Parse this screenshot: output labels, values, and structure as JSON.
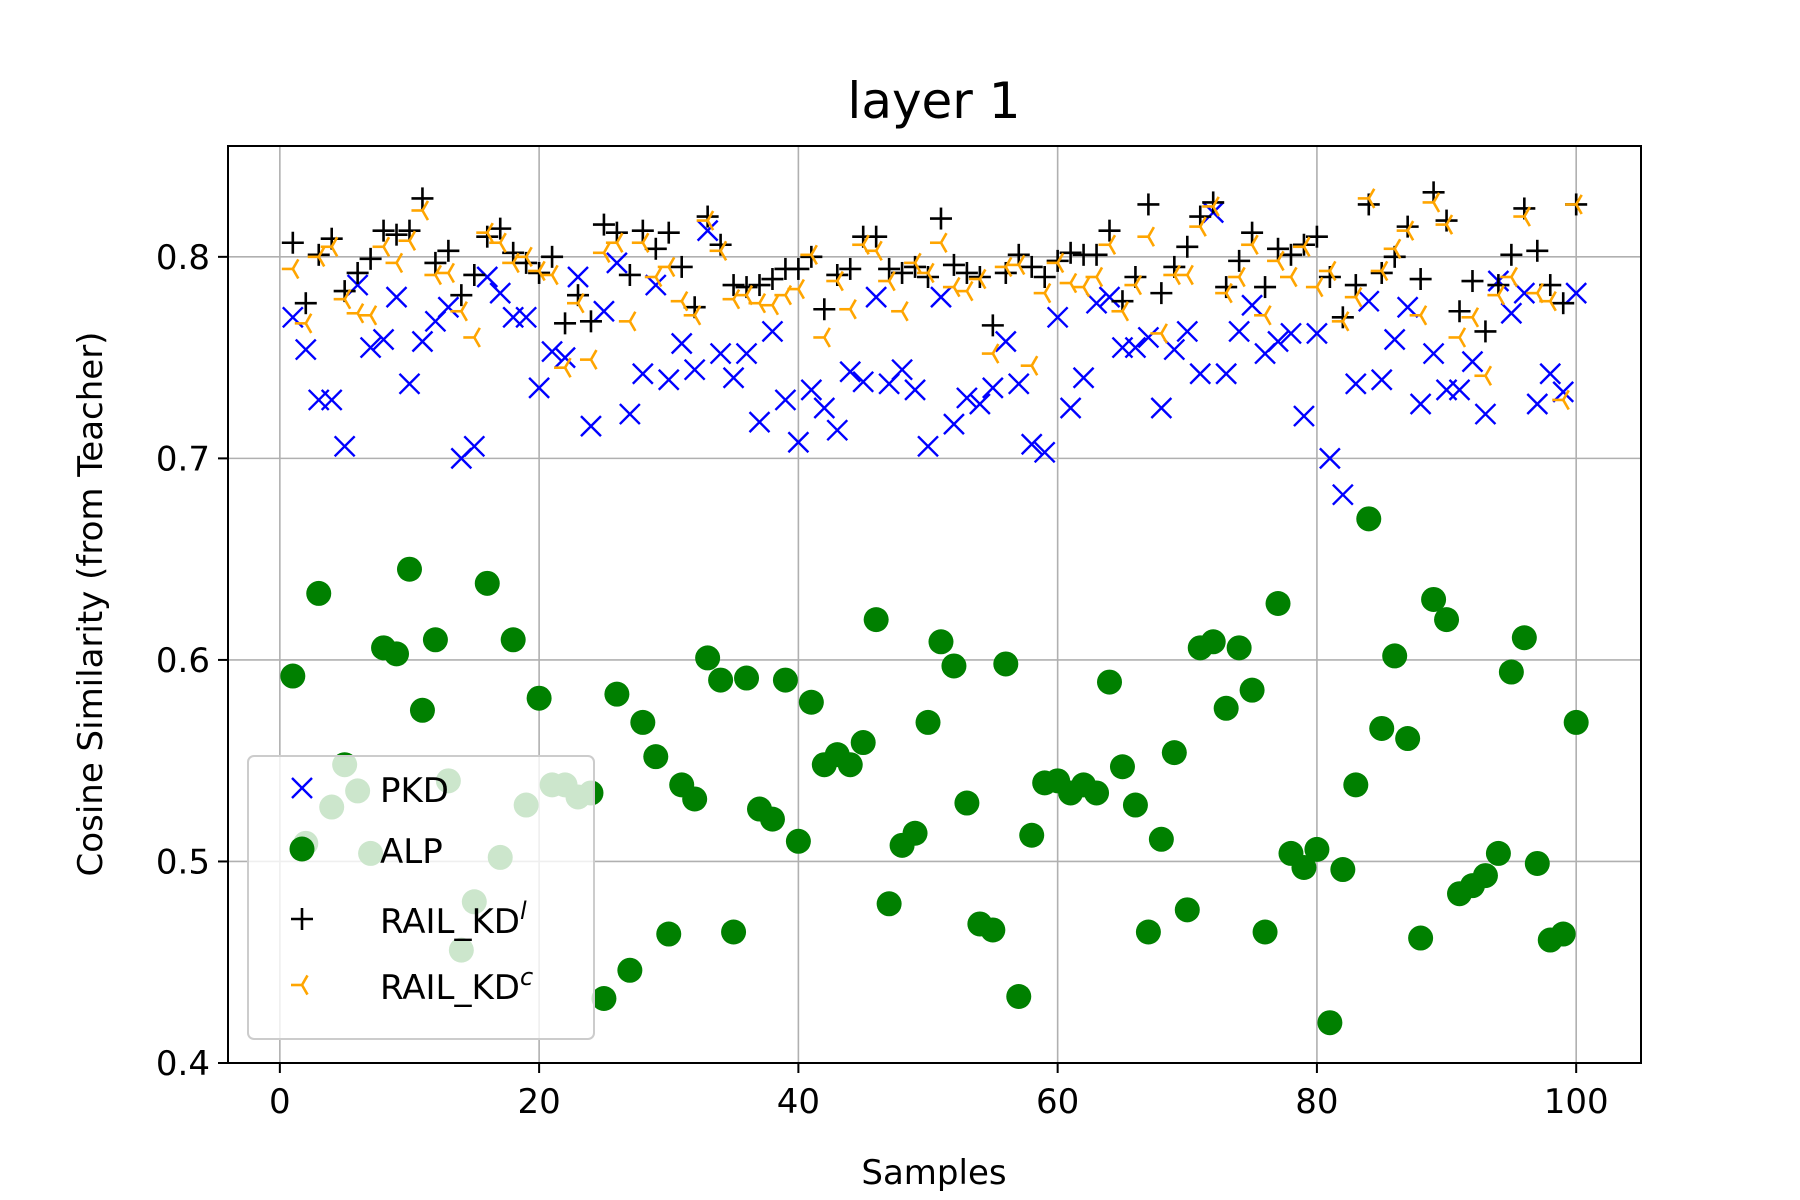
{
  "chart_data": {
    "type": "scatter",
    "title": "layer 1",
    "xlabel": "Samples",
    "ylabel": "Cosine Similarity (from Teacher)",
    "xlim": [
      -4,
      105
    ],
    "ylim": [
      0.4,
      0.855
    ],
    "xticks": [
      0,
      20,
      40,
      60,
      80,
      100
    ],
    "xtick_labels": [
      "0",
      "20",
      "40",
      "60",
      "80",
      "100"
    ],
    "yticks": [
      0.4,
      0.5,
      0.6,
      0.7,
      0.8
    ],
    "ytick_labels": [
      "0.4",
      "0.5",
      "0.6",
      "0.7",
      "0.8"
    ],
    "grid": true,
    "legend_position": "lower-left",
    "x": [
      1,
      2,
      3,
      4,
      5,
      6,
      7,
      8,
      9,
      10,
      11,
      12,
      13,
      14,
      15,
      16,
      17,
      18,
      19,
      20,
      21,
      22,
      23,
      24,
      25,
      26,
      27,
      28,
      29,
      30,
      31,
      32,
      33,
      34,
      35,
      36,
      37,
      38,
      39,
      40,
      41,
      42,
      43,
      44,
      45,
      46,
      47,
      48,
      49,
      50,
      51,
      52,
      53,
      54,
      55,
      56,
      57,
      58,
      59,
      60,
      61,
      62,
      63,
      64,
      65,
      66,
      67,
      68,
      69,
      70,
      71,
      72,
      73,
      74,
      75,
      76,
      77,
      78,
      79,
      80,
      81,
      82,
      83,
      84,
      85,
      86,
      87,
      88,
      89,
      90,
      91,
      92,
      93,
      94,
      95,
      96,
      97,
      98,
      99,
      100
    ],
    "series": [
      {
        "name": "PKD",
        "marker": "x",
        "color": "#0000ff",
        "values": [
          0.77,
          0.754,
          0.729,
          0.729,
          0.706,
          0.786,
          0.755,
          0.759,
          0.78,
          0.737,
          0.758,
          0.768,
          0.775,
          0.7,
          0.706,
          0.79,
          0.782,
          0.77,
          0.77,
          0.735,
          0.753,
          0.75,
          0.79,
          0.716,
          0.773,
          0.797,
          0.722,
          0.742,
          0.786,
          0.739,
          0.757,
          0.744,
          0.813,
          0.752,
          0.74,
          0.752,
          0.718,
          0.763,
          0.729,
          0.708,
          0.734,
          0.725,
          0.714,
          0.743,
          0.738,
          0.78,
          0.737,
          0.744,
          0.734,
          0.706,
          0.78,
          0.717,
          0.73,
          0.727,
          0.735,
          0.758,
          0.737,
          0.707,
          0.703,
          0.77,
          0.725,
          0.74,
          0.777,
          0.78,
          0.755,
          0.755,
          0.76,
          0.725,
          0.754,
          0.763,
          0.742,
          0.822,
          0.742,
          0.763,
          0.776,
          0.752,
          0.758,
          0.762,
          0.721,
          0.762,
          0.7,
          0.682,
          0.737,
          0.778,
          0.739,
          0.759,
          0.775,
          0.727,
          0.752,
          0.734,
          0.734,
          0.748,
          0.722,
          0.788,
          0.772,
          0.782,
          0.727,
          0.742,
          0.733,
          0.782
        ]
      },
      {
        "name": "ALP",
        "marker": "o",
        "color": "#008000",
        "values": [
          0.592,
          0.509,
          0.633,
          0.527,
          0.548,
          0.535,
          0.504,
          0.606,
          0.603,
          0.645,
          0.575,
          0.61,
          0.54,
          0.456,
          0.48,
          0.638,
          0.502,
          0.61,
          0.528,
          0.581,
          0.538,
          0.538,
          0.532,
          0.534,
          0.432,
          0.583,
          0.446,
          0.569,
          0.552,
          0.464,
          0.538,
          0.531,
          0.601,
          0.59,
          0.465,
          0.591,
          0.526,
          0.521,
          0.59,
          0.51,
          0.579,
          0.548,
          0.553,
          0.548,
          0.559,
          0.62,
          0.479,
          0.508,
          0.514,
          0.569,
          0.609,
          0.597,
          0.529,
          0.469,
          0.466,
          0.598,
          0.433,
          0.513,
          0.539,
          0.54,
          0.534,
          0.538,
          0.534,
          0.589,
          0.547,
          0.528,
          0.465,
          0.511,
          0.554,
          0.476,
          0.606,
          0.609,
          0.576,
          0.606,
          0.585,
          0.465,
          0.628,
          0.504,
          0.497,
          0.506,
          0.42,
          0.496,
          0.538,
          0.67,
          0.566,
          0.602,
          0.561,
          0.462,
          0.63,
          0.62,
          0.484,
          0.488,
          0.493,
          0.504,
          0.594,
          0.611,
          0.499,
          0.461,
          0.464,
          0.569
        ]
      },
      {
        "name": "RAIL_KD",
        "name_superscript": "l",
        "marker": "+",
        "color": "#000000",
        "values": [
          0.807,
          0.777,
          0.801,
          0.809,
          0.783,
          0.792,
          0.799,
          0.813,
          0.811,
          0.813,
          0.829,
          0.797,
          0.803,
          0.781,
          0.791,
          0.81,
          0.814,
          0.802,
          0.797,
          0.792,
          0.8,
          0.767,
          0.781,
          0.768,
          0.816,
          0.812,
          0.791,
          0.813,
          0.804,
          0.812,
          0.795,
          0.775,
          0.82,
          0.806,
          0.786,
          0.785,
          0.786,
          0.789,
          0.794,
          0.794,
          0.8,
          0.774,
          0.791,
          0.794,
          0.81,
          0.81,
          0.794,
          0.792,
          0.795,
          0.79,
          0.819,
          0.796,
          0.792,
          0.79,
          0.766,
          0.792,
          0.801,
          0.795,
          0.79,
          0.798,
          0.802,
          0.801,
          0.801,
          0.813,
          0.778,
          0.79,
          0.826,
          0.782,
          0.795,
          0.805,
          0.82,
          0.827,
          0.785,
          0.798,
          0.812,
          0.785,
          0.804,
          0.801,
          0.806,
          0.81,
          0.79,
          0.77,
          0.786,
          0.826,
          0.792,
          0.8,
          0.815,
          0.789,
          0.832,
          0.818,
          0.773,
          0.788,
          0.763,
          0.786,
          0.801,
          0.824,
          0.803,
          0.786,
          0.777,
          0.826
        ]
      },
      {
        "name": "RAIL_KD",
        "name_superscript": "c",
        "marker": "tri_left",
        "color": "#ffa500",
        "values": [
          0.794,
          0.767,
          0.8,
          0.805,
          0.779,
          0.772,
          0.771,
          0.805,
          0.797,
          0.808,
          0.823,
          0.791,
          0.792,
          0.773,
          0.76,
          0.812,
          0.807,
          0.797,
          0.8,
          0.793,
          0.791,
          0.745,
          0.777,
          0.749,
          0.802,
          0.807,
          0.768,
          0.807,
          0.79,
          0.795,
          0.778,
          0.771,
          0.818,
          0.803,
          0.779,
          0.781,
          0.777,
          0.776,
          0.781,
          0.784,
          0.801,
          0.76,
          0.788,
          0.774,
          0.806,
          0.803,
          0.788,
          0.773,
          0.797,
          0.792,
          0.807,
          0.785,
          0.783,
          0.789,
          0.752,
          0.795,
          0.796,
          0.746,
          0.782,
          0.797,
          0.787,
          0.785,
          0.79,
          0.806,
          0.773,
          0.786,
          0.81,
          0.762,
          0.791,
          0.791,
          0.815,
          0.825,
          0.782,
          0.79,
          0.806,
          0.771,
          0.798,
          0.79,
          0.805,
          0.785,
          0.793,
          0.768,
          0.78,
          0.829,
          0.793,
          0.804,
          0.813,
          0.771,
          0.827,
          0.816,
          0.76,
          0.77,
          0.741,
          0.781,
          0.79,
          0.82,
          0.782,
          0.778,
          0.729,
          0.826
        ]
      }
    ]
  }
}
